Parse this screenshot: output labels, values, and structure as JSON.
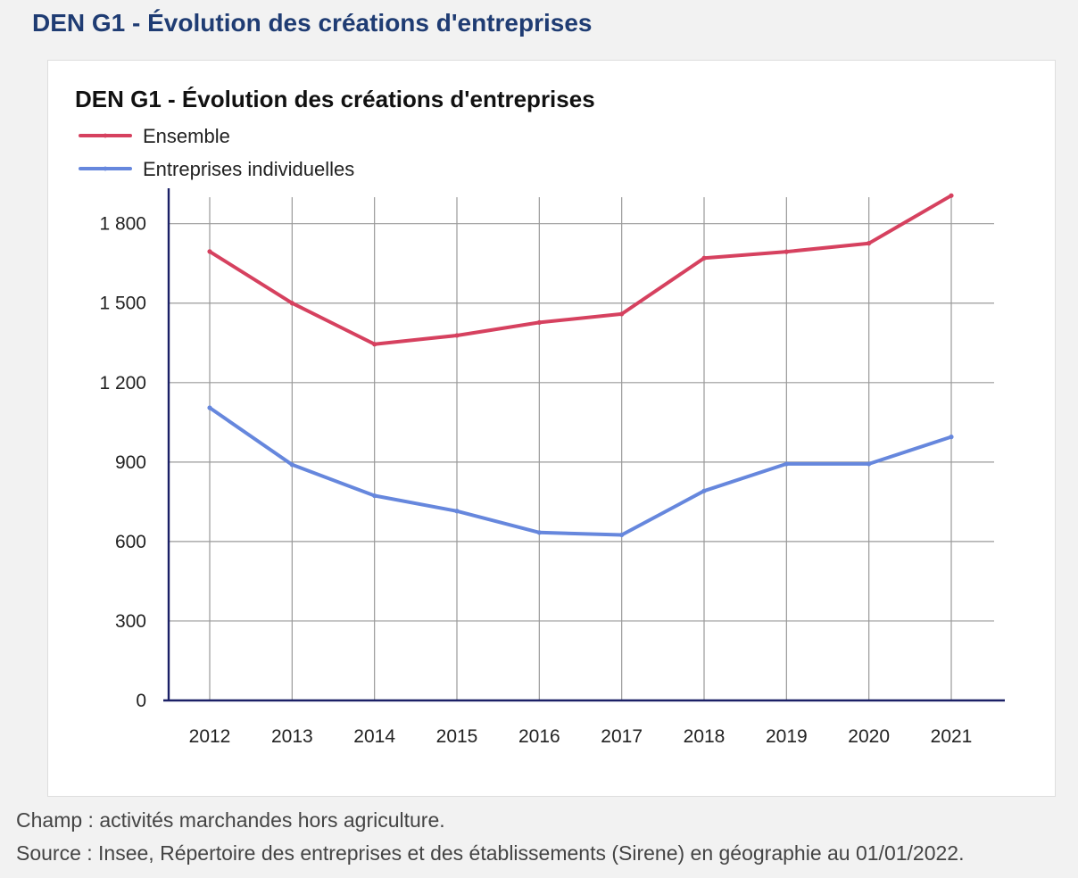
{
  "page": {
    "title": "DEN G1 - Évolution des créations d'entreprises"
  },
  "chart_data": {
    "type": "line",
    "title": "DEN G1 - Évolution des créations d'entreprises",
    "xlabel": "",
    "ylabel": "",
    "x": [
      "2012",
      "2013",
      "2014",
      "2015",
      "2016",
      "2017",
      "2018",
      "2019",
      "2020",
      "2021"
    ],
    "ylim": [
      0,
      1900
    ],
    "yticks": [
      0,
      300,
      600,
      900,
      1200,
      1500,
      1800
    ],
    "ytick_labels": [
      "0",
      "300",
      "600",
      "900",
      "1 200",
      "1 500",
      "1 800"
    ],
    "grid": true,
    "legend_position": "top-left",
    "series": [
      {
        "name": "Ensemble",
        "color": "#d6415f",
        "values": [
          1695,
          1500,
          1345,
          1378,
          1427,
          1459,
          1670,
          1694,
          1726,
          1906
        ]
      },
      {
        "name": "Entreprises individuelles",
        "color": "#6687dd",
        "values": [
          1105,
          890,
          773,
          715,
          634,
          625,
          791,
          893,
          893,
          995
        ]
      }
    ]
  },
  "notes": {
    "champ": "Champ : activités marchandes hors agriculture.",
    "source": "Source : Insee, Répertoire des entreprises et des établissements (Sirene) en géographie au 01/01/2022."
  }
}
